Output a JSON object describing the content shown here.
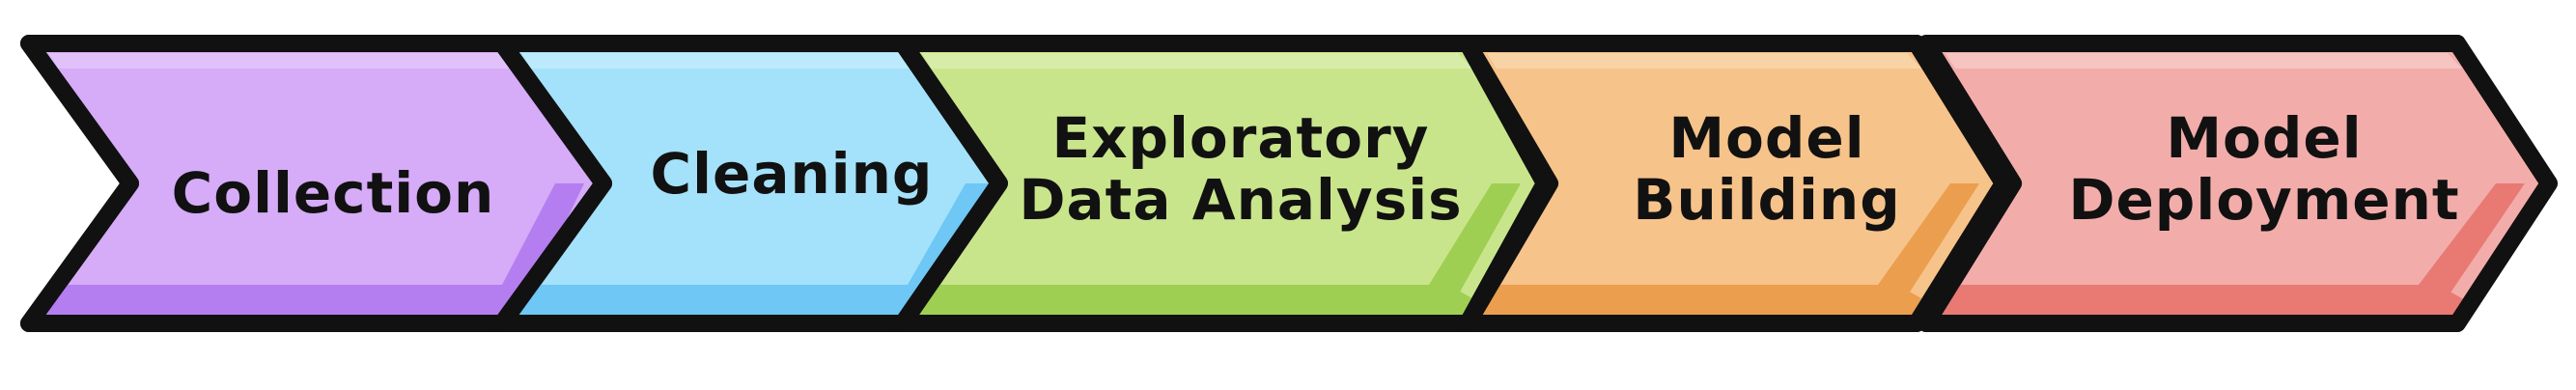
{
  "diagram": {
    "stages": [
      {
        "lines": [
          "Collection"
        ],
        "color": "#d6abf7",
        "shade": "#b57ef0",
        "highlight": "#e6cafb"
      },
      {
        "lines": [
          "Cleaning"
        ],
        "color": "#a3e2fa",
        "shade": "#6ec7f4",
        "highlight": "#c6eefc"
      },
      {
        "lines": [
          "Exploratory",
          "Data Analysis"
        ],
        "color": "#c9e58c",
        "shade": "#9fcf52",
        "highlight": "#ddf0b3"
      },
      {
        "lines": [
          "Model",
          "Building"
        ],
        "color": "#f6c38a",
        "shade": "#eb9e4e",
        "highlight": "#fadab2"
      },
      {
        "lines": [
          "Model",
          "Deployment"
        ],
        "color": "#f2adaa",
        "shade": "#e87a73",
        "highlight": "#f8cdcb"
      }
    ],
    "outline_color": "#111111"
  }
}
